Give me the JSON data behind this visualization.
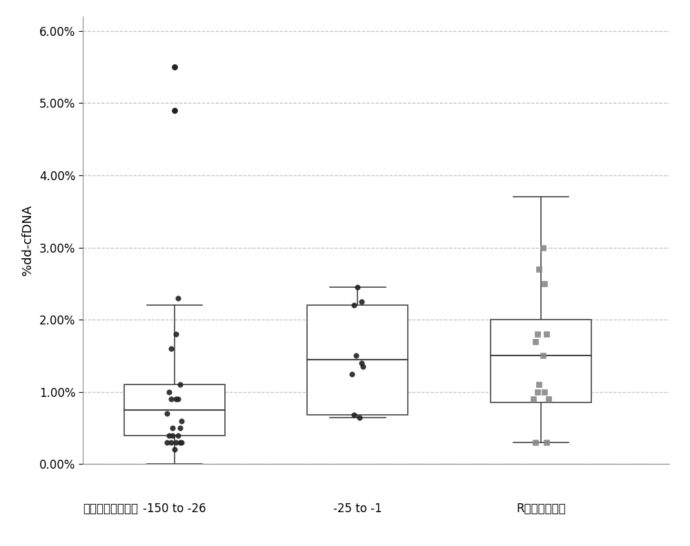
{
  "categories": [
    "-150 to -26",
    "-25 to -1",
    "R（索引就诊）"
  ],
  "xlabel_prefix": "索引就诊前的天数",
  "ylabel": "%dd-cfDNA",
  "ylim": [
    0.0,
    0.062
  ],
  "yticks": [
    0.0,
    0.01,
    0.02,
    0.03,
    0.04,
    0.05,
    0.06
  ],
  "ytick_labels": [
    "0.00%",
    "1.00%",
    "2.00%",
    "3.00%",
    "4.00%",
    "5.00%",
    "6.00%"
  ],
  "background_color": "#ffffff",
  "box_color": "#ffffff",
  "box_edge_color": "#444444",
  "whisker_color": "#444444",
  "median_color": "#444444",
  "grid_color": "#bbbbbb",
  "boxes": [
    {
      "label": "-150 to -26",
      "q1": 0.004,
      "median": 0.0075,
      "q3": 0.011,
      "whisker_low": 0.0,
      "whisker_high": 0.022,
      "outliers": [
        0.049,
        0.055
      ],
      "scatter_y": [
        0.003,
        0.003,
        0.003,
        0.004,
        0.004,
        0.005,
        0.006,
        0.007,
        0.009,
        0.009,
        0.009,
        0.01,
        0.011,
        0.002,
        0.016,
        0.018,
        0.023,
        0.003,
        0.003,
        0.004,
        0.005
      ],
      "scatter_x_jitter": [
        -0.02,
        0.01,
        0.03,
        -0.03,
        0.02,
        -0.01,
        0.04,
        -0.04,
        0.02,
        -0.02,
        0.01,
        -0.03,
        0.03,
        0.0,
        -0.02,
        0.01,
        0.02,
        0.04,
        -0.04,
        -0.01,
        0.03
      ],
      "marker": "o",
      "marker_color": "#222222",
      "marker_size": 28
    },
    {
      "label": "-25 to -1",
      "q1": 0.0068,
      "median": 0.0145,
      "q3": 0.022,
      "whisker_low": 0.0064,
      "whisker_high": 0.0245,
      "outliers": [],
      "scatter_y": [
        0.0064,
        0.0068,
        0.0125,
        0.0135,
        0.014,
        0.015,
        0.022,
        0.0225,
        0.0245
      ],
      "scatter_x_jitter": [
        0.01,
        -0.02,
        -0.03,
        0.03,
        0.02,
        -0.01,
        -0.02,
        0.02,
        0.0
      ],
      "marker": "o",
      "marker_color": "#222222",
      "marker_size": 28
    },
    {
      "label": "R",
      "q1": 0.0085,
      "median": 0.015,
      "q3": 0.02,
      "whisker_low": 0.003,
      "whisker_high": 0.037,
      "outliers": [],
      "scatter_y": [
        0.003,
        0.003,
        0.009,
        0.009,
        0.01,
        0.01,
        0.011,
        0.015,
        0.017,
        0.018,
        0.018,
        0.025,
        0.027,
        0.03
      ],
      "scatter_x_jitter": [
        -0.03,
        0.03,
        -0.04,
        0.04,
        -0.02,
        0.02,
        -0.01,
        0.01,
        -0.03,
        0.03,
        -0.02,
        0.02,
        -0.01,
        0.01
      ],
      "marker": "s",
      "marker_color": "#888888",
      "marker_size": 28
    }
  ],
  "figsize": [
    10.0,
    7.91
  ],
  "dpi": 100,
  "positions": [
    1,
    2,
    3
  ],
  "box_width": 0.55,
  "cap_ratio": 0.55
}
